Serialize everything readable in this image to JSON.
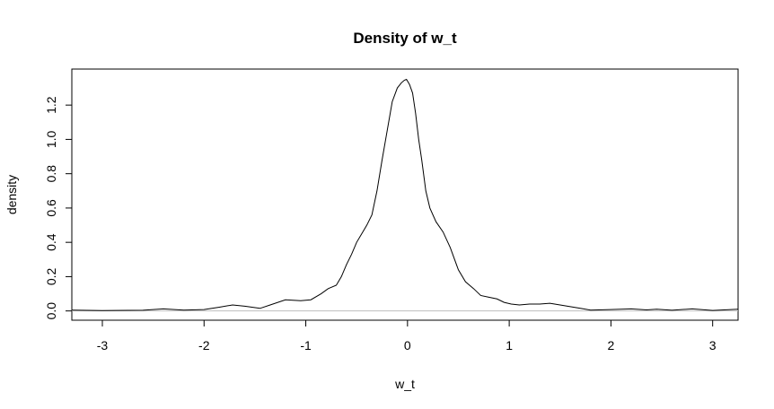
{
  "chart_data": {
    "type": "line",
    "title": "Density of w_t",
    "xlabel": "w_t",
    "ylabel": "density",
    "xlim": [
      -3.3,
      3.25
    ],
    "ylim": [
      -0.054,
      1.41
    ],
    "x_ticks": [
      -3,
      -2,
      -1,
      0,
      1,
      2,
      3
    ],
    "y_ticks": [
      0.0,
      0.2,
      0.4,
      0.6,
      0.8,
      1.0,
      1.2
    ],
    "y_tick_labels": [
      "0.0",
      "0.2",
      "0.4",
      "0.6",
      "0.8",
      "1.0",
      "1.2"
    ],
    "baseline": 0,
    "grid": false,
    "colors": {
      "line": "#000000",
      "baseline": "#bebebe",
      "frame": "#000000"
    },
    "series": [
      {
        "x": [
          -3.3,
          -3.0,
          -2.6,
          -2.4,
          -2.2,
          -2.0,
          -1.85,
          -1.72,
          -1.6,
          -1.45,
          -1.35,
          -1.2,
          -1.05,
          -0.95,
          -0.85,
          -0.78,
          -0.7,
          -0.65,
          -0.6,
          -0.55,
          -0.5,
          -0.45,
          -0.4,
          -0.35,
          -0.3,
          -0.25,
          -0.2,
          -0.15,
          -0.1,
          -0.06,
          -0.03,
          -0.01,
          0.0,
          0.02,
          0.05,
          0.08,
          0.11,
          0.14,
          0.18,
          0.22,
          0.28,
          0.35,
          0.42,
          0.5,
          0.57,
          0.65,
          0.72,
          0.8,
          0.88,
          0.95,
          1.02,
          1.1,
          1.2,
          1.3,
          1.4,
          1.5,
          1.6,
          1.7,
          1.8,
          2.0,
          2.2,
          2.35,
          2.45,
          2.6,
          2.8,
          3.0,
          3.25
        ],
        "y": [
          0.005,
          0.002,
          0.004,
          0.012,
          0.005,
          0.008,
          0.022,
          0.035,
          0.028,
          0.015,
          0.035,
          0.065,
          0.06,
          0.065,
          0.1,
          0.13,
          0.15,
          0.2,
          0.27,
          0.33,
          0.4,
          0.45,
          0.5,
          0.56,
          0.7,
          0.88,
          1.05,
          1.22,
          1.3,
          1.33,
          1.345,
          1.35,
          1.34,
          1.32,
          1.27,
          1.15,
          1.0,
          0.88,
          0.7,
          0.6,
          0.52,
          0.46,
          0.37,
          0.24,
          0.17,
          0.13,
          0.09,
          0.08,
          0.07,
          0.05,
          0.04,
          0.035,
          0.04,
          0.04,
          0.045,
          0.035,
          0.025,
          0.015,
          0.005,
          0.008,
          0.012,
          0.006,
          0.01,
          0.004,
          0.012,
          0.003,
          0.01
        ]
      }
    ]
  }
}
